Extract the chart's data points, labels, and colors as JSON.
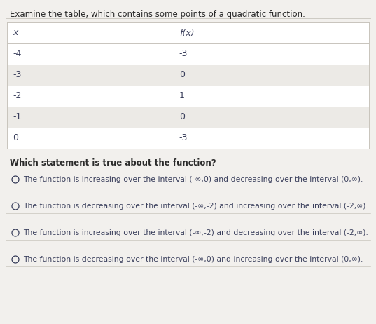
{
  "title": "Examine the table, which contains some points of a quadratic function.",
  "table_headers": [
    "x",
    "f(x)"
  ],
  "table_rows": [
    [
      "-4",
      "-3"
    ],
    [
      "-3",
      "0"
    ],
    [
      "-2",
      "1"
    ],
    [
      "-1",
      "0"
    ],
    [
      "0",
      "-3"
    ]
  ],
  "question": "Which statement is true about the function?",
  "options": [
    "The function is increasing over the interval (-∞,0) and decreasing over the interval (0,∞).",
    "The function is decreasing over the interval (-∞,-2) and increasing over the interval (-2,∞).",
    "The function is increasing over the interval (-∞,-2) and decreasing over the interval (-2,∞).",
    "The function is decreasing over the interval (-∞,0) and increasing over the interval (0,∞)."
  ],
  "bg_color": "#f2f0ed",
  "table_bg": "#ffffff",
  "table_cell_bg": "#eceae6",
  "text_color": "#3a3f5c",
  "border_color": "#c8c4bc",
  "title_color": "#2a2a2a",
  "title_fontsize": 8.5,
  "question_fontsize": 8.5,
  "option_fontsize": 7.8,
  "table_fontsize": 9.0,
  "col_split": 0.46
}
